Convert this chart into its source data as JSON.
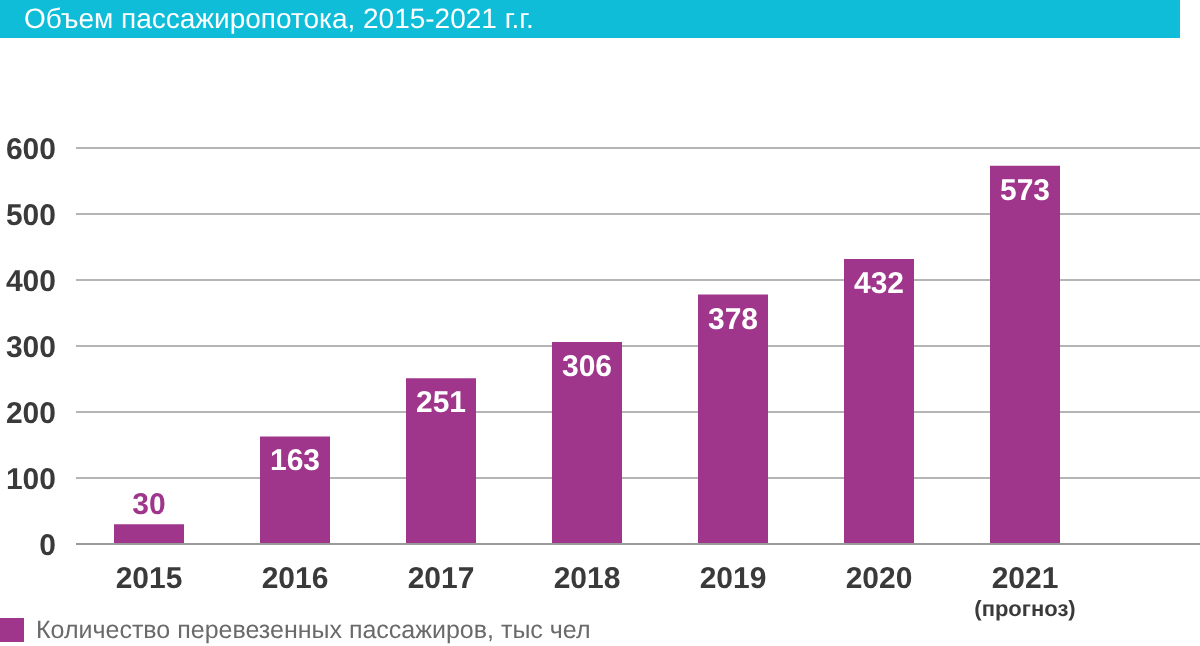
{
  "chart_data": {
    "type": "bar",
    "title": "Объем пассажиропотока, 2015-2021 г.г.",
    "categories": [
      "2015",
      "2016",
      "2017",
      "2018",
      "2019",
      "2020",
      "2021\n(прогноз)"
    ],
    "series": [
      {
        "name": "Количество перевезенных пассажиров, тыс чел",
        "color": "#a0368c",
        "values": [
          30,
          163,
          251,
          306,
          378,
          432,
          573
        ]
      }
    ],
    "ylim": [
      0,
      600
    ],
    "yticks": [
      0,
      100,
      200,
      300,
      400,
      500,
      600
    ],
    "grid": "y",
    "legend": "bottom left",
    "data_labels": true
  }
}
